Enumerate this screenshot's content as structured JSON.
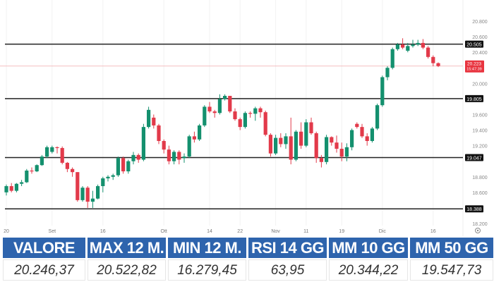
{
  "chart_data": {
    "type": "candlestick",
    "y_ticks": [
      "20.800",
      "20.600",
      "20.400",
      "20.000",
      "19.600",
      "19.400",
      "19.200",
      "18.800",
      "18.600",
      "18.200"
    ],
    "ylim": [
      18200,
      20800
    ],
    "x_ticks": [
      {
        "label": "20",
        "index": 0
      },
      {
        "label": "Set",
        "index": 9
      },
      {
        "label": "16",
        "index": 19
      },
      {
        "label": "Ott",
        "index": 31
      },
      {
        "label": "14",
        "index": 40
      },
      {
        "label": "22",
        "index": 46
      },
      {
        "label": "Nov",
        "index": 53
      },
      {
        "label": "11",
        "index": 59
      },
      {
        "label": "19",
        "index": 66
      },
      {
        "label": "Dic",
        "index": 74
      },
      {
        "label": "16",
        "index": 84
      }
    ],
    "levels": [
      {
        "label": "20.505",
        "value": 20505
      },
      {
        "label": "19.805",
        "value": 19805
      },
      {
        "label": "19.047",
        "value": 19047
      },
      {
        "label": "18.388",
        "value": 18388
      }
    ],
    "current": {
      "price": "20.223",
      "time": "15:47:39",
      "value": 20223
    },
    "colors": {
      "up": "#14906e",
      "down": "#e23a4a",
      "level": "#222222",
      "current": "#e8343f"
    },
    "candles": [
      [
        18600,
        18700,
        18560,
        18680
      ],
      [
        18680,
        18720,
        18600,
        18620
      ],
      [
        18620,
        18720,
        18600,
        18710
      ],
      [
        18710,
        18760,
        18680,
        18730
      ],
      [
        18730,
        18900,
        18720,
        18880
      ],
      [
        18880,
        18920,
        18840,
        18870
      ],
      [
        18870,
        18960,
        18860,
        18950
      ],
      [
        18950,
        19080,
        18940,
        19060
      ],
      [
        19060,
        19200,
        19040,
        19180
      ],
      [
        19120,
        19200,
        19100,
        19180
      ],
      [
        19180,
        19190,
        19100,
        19170
      ],
      [
        19170,
        19190,
        18960,
        18980
      ],
      [
        18980,
        18990,
        18860,
        18900
      ],
      [
        18900,
        18920,
        18800,
        18860
      ],
      [
        18860,
        18860,
        18480,
        18500
      ],
      [
        18500,
        18680,
        18480,
        18660
      ],
      [
        18660,
        18680,
        18400,
        18480
      ],
      [
        18480,
        18620,
        18400,
        18520
      ],
      [
        18520,
        18700,
        18510,
        18680
      ],
      [
        18680,
        18800,
        18600,
        18780
      ],
      [
        18780,
        18820,
        18740,
        18800
      ],
      [
        18800,
        18840,
        18760,
        18820
      ],
      [
        18820,
        19060,
        18800,
        19040
      ],
      [
        19040,
        19060,
        18840,
        18870
      ],
      [
        18870,
        19020,
        18840,
        19000
      ],
      [
        19000,
        19120,
        18960,
        19080
      ],
      [
        19080,
        19100,
        18980,
        19020
      ],
      [
        19020,
        19480,
        19000,
        19440
      ],
      [
        19440,
        19700,
        19420,
        19660
      ],
      [
        19560,
        19600,
        19420,
        19460
      ],
      [
        19460,
        19480,
        19220,
        19260
      ],
      [
        19260,
        19280,
        19100,
        19150
      ],
      [
        19150,
        19200,
        18960,
        19000
      ],
      [
        19000,
        19140,
        18960,
        19120
      ],
      [
        19120,
        19140,
        18960,
        19020
      ],
      [
        19040,
        19100,
        18980,
        19060
      ],
      [
        19060,
        19340,
        19040,
        19320
      ],
      [
        19320,
        19380,
        19240,
        19280
      ],
      [
        19280,
        19480,
        19260,
        19460
      ],
      [
        19460,
        19720,
        19440,
        19700
      ],
      [
        19700,
        19760,
        19620,
        19640
      ],
      [
        19640,
        19660,
        19560,
        19620
      ],
      [
        19620,
        19860,
        19600,
        19800
      ],
      [
        19800,
        19860,
        19780,
        19840
      ],
      [
        19840,
        19840,
        19620,
        19640
      ],
      [
        19640,
        19680,
        19520,
        19540
      ],
      [
        19540,
        19560,
        19400,
        19440
      ],
      [
        19440,
        19640,
        19420,
        19620
      ],
      [
        19620,
        19640,
        19560,
        19610
      ],
      [
        19610,
        19700,
        19520,
        19680
      ],
      [
        19680,
        19700,
        19560,
        19630
      ],
      [
        19630,
        19650,
        19320,
        19340
      ],
      [
        19340,
        19360,
        19060,
        19100
      ],
      [
        19100,
        19340,
        19080,
        19300
      ],
      [
        19300,
        19360,
        19180,
        19220
      ],
      [
        19220,
        19360,
        19160,
        19320
      ],
      [
        19320,
        19560,
        18960,
        19020
      ],
      [
        19020,
        19400,
        19000,
        19380
      ],
      [
        19380,
        19500,
        19160,
        19200
      ],
      [
        19200,
        19540,
        19180,
        19500
      ],
      [
        19500,
        19560,
        19340,
        19360
      ],
      [
        19360,
        19380,
        18980,
        19040
      ],
      [
        19040,
        19080,
        18920,
        18990
      ],
      [
        18990,
        19340,
        18960,
        19310
      ],
      [
        19310,
        19320,
        19200,
        19240
      ],
      [
        19240,
        19330,
        19110,
        19160
      ],
      [
        19160,
        19240,
        19000,
        19060
      ],
      [
        19060,
        19230,
        19000,
        19180
      ],
      [
        19180,
        19420,
        19140,
        19400
      ],
      [
        19480,
        19500,
        19420,
        19440
      ],
      [
        19440,
        19480,
        19300,
        19320
      ],
      [
        19320,
        19360,
        19200,
        19260
      ],
      [
        19260,
        19440,
        19240,
        19420
      ],
      [
        19420,
        19740,
        19400,
        19720
      ],
      [
        19720,
        20100,
        19700,
        20080
      ],
      [
        20080,
        20220,
        20040,
        20200
      ],
      [
        20200,
        20460,
        20180,
        20440
      ],
      [
        20440,
        20520,
        20420,
        20500
      ],
      [
        20500,
        20580,
        20440,
        20460
      ],
      [
        20420,
        20520,
        20400,
        20480
      ],
      [
        20480,
        20560,
        20460,
        20500
      ],
      [
        20500,
        20560,
        20480,
        20520
      ],
      [
        20520,
        20570,
        20440,
        20460
      ],
      [
        20460,
        20480,
        20320,
        20340
      ],
      [
        20340,
        20360,
        20220,
        20260
      ],
      [
        20260,
        20270,
        20210,
        20223
      ]
    ]
  },
  "table": {
    "headers": [
      "VALORE",
      "MAX 12 M.",
      "MIN 12 M.",
      "RSI 14 GG",
      "MM 10 GG",
      "MM 50 GG"
    ],
    "values": [
      "20.246,37",
      "20.522,82",
      "16.279,45",
      "63,95",
      "20.344,22",
      "19.547,73"
    ]
  },
  "settings_icon": "gear-icon"
}
